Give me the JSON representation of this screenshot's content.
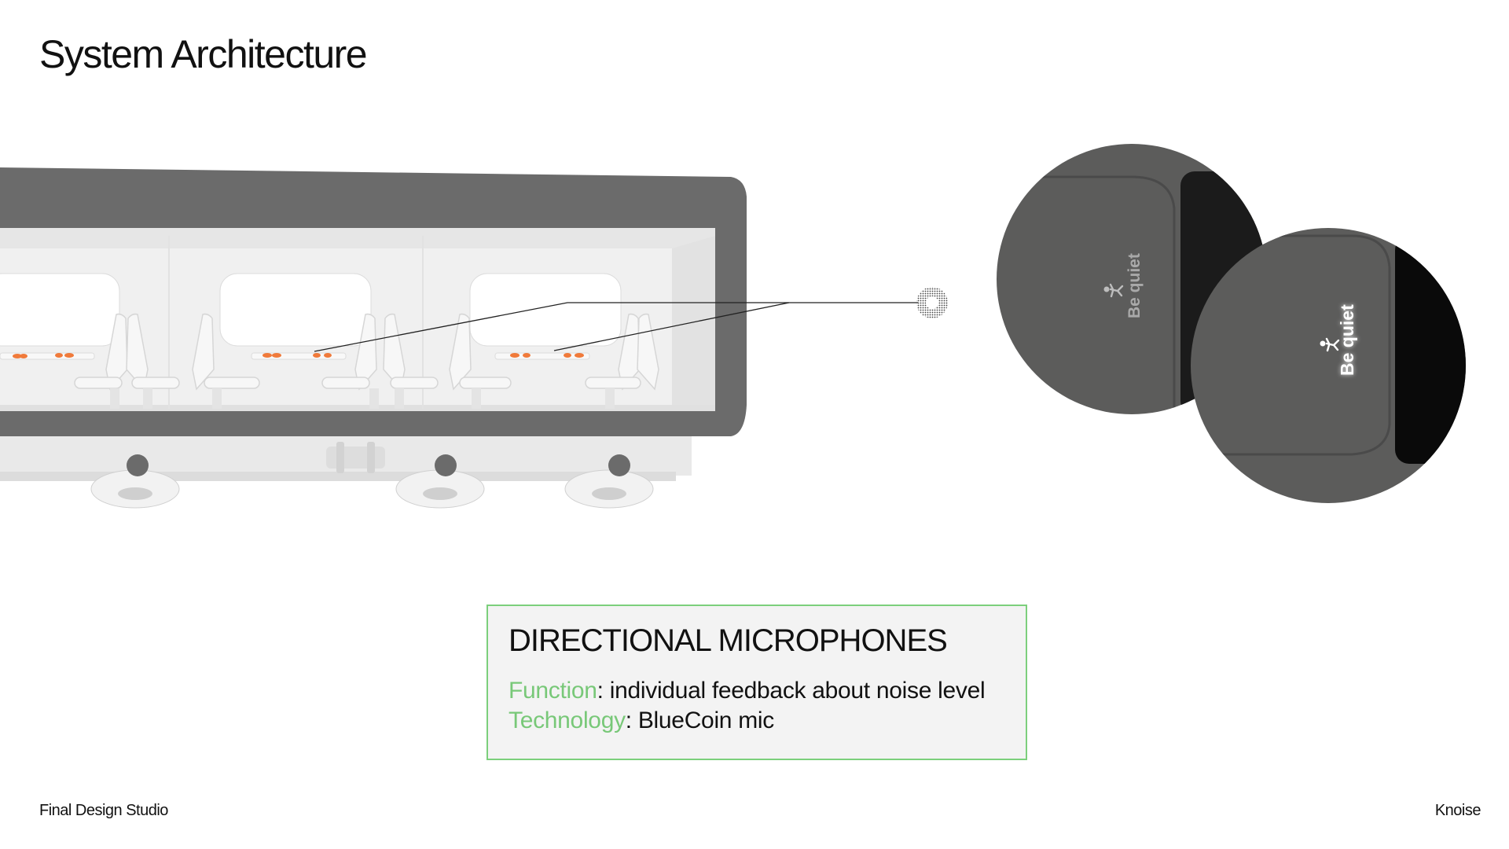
{
  "slide": {
    "title": "System Architecture"
  },
  "closeups": {
    "badge_text": "Be quiet"
  },
  "infobox": {
    "heading": "DIRECTIONAL MICROPHONES",
    "function_key": "Function",
    "function_value": ": individual feedback about noise level",
    "technology_key": "Technology",
    "technology_value": ": BlueCoin mic"
  },
  "footer": {
    "left": "Final Design Studio",
    "right": "Knoise"
  },
  "colors": {
    "accent_green": "#7ccf7c",
    "train_shell": "#6b6b6b",
    "interior": "#f0f0f0",
    "indicator_orange": "#f07a3a"
  },
  "icons": [
    "microphone-icon",
    "person-icon"
  ]
}
